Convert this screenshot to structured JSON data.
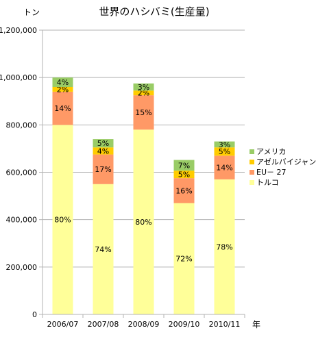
{
  "chart_data": {
    "type": "bar",
    "stacked": true,
    "title": "世界のハシバミ(生産量)",
    "ylabel": "トン",
    "xlabel": "年",
    "ylim": [
      0,
      1200000
    ],
    "yticks": [
      0,
      200000,
      400000,
      600000,
      800000,
      1000000,
      1200000
    ],
    "ytick_labels": [
      "0",
      "200,000",
      "400,000",
      "600,000",
      "800,000",
      "1,000,000",
      "1,200,000"
    ],
    "grid": true,
    "legend_position": "right",
    "categories": [
      "2006/07",
      "2007/08",
      "2008/09",
      "2009/10",
      "2010/11"
    ],
    "series": [
      {
        "name": "トルコ",
        "color": "#ffff99",
        "values": [
          800000,
          550000,
          780000,
          470000,
          570000
        ],
        "labels": [
          "80%",
          "74%",
          "80%",
          "72%",
          "78%"
        ]
      },
      {
        "name": "EU－ 27",
        "color": "#ff9966",
        "values": [
          140000,
          125000,
          145000,
          105000,
          100000
        ],
        "labels": [
          "14%",
          "17%",
          "15%",
          "16%",
          "14%"
        ]
      },
      {
        "name": "アゼルバイジャン",
        "color": "#ffcc00",
        "values": [
          20000,
          30000,
          20000,
          32000,
          35000
        ],
        "labels": [
          "2%",
          "4%",
          "2%",
          "5%",
          "5%"
        ]
      },
      {
        "name": "アメリカ",
        "color": "#99cc66",
        "values": [
          40000,
          35000,
          30000,
          45000,
          25000
        ],
        "labels": [
          "4%",
          "5%",
          "3%",
          "7%",
          "3%"
        ]
      }
    ],
    "legend_order": [
      3,
      2,
      1,
      0
    ]
  }
}
